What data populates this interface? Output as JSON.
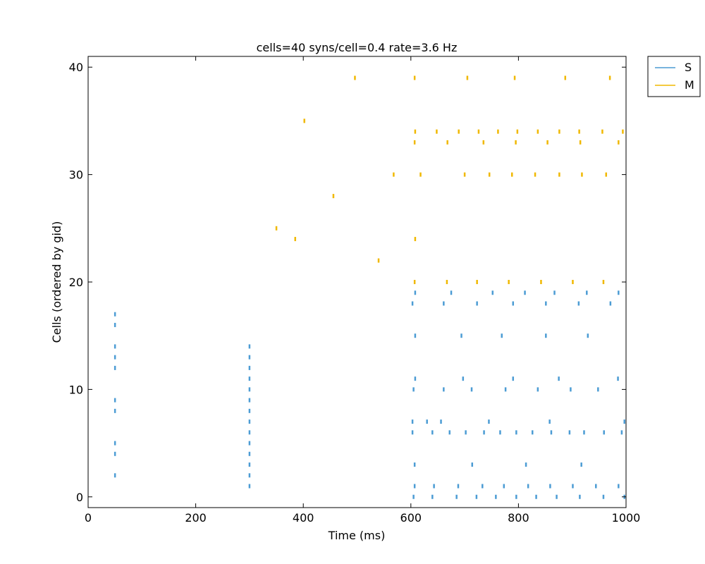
{
  "chart_data": {
    "type": "scatter",
    "title": "cells=40 syns/cell=0.4 rate=3.6 Hz",
    "xlabel": "Time (ms)",
    "ylabel": "Cells (ordered by gid)",
    "xlim": [
      0,
      1000
    ],
    "ylim": [
      -1,
      41
    ],
    "xticks": [
      0,
      200,
      400,
      600,
      800,
      1000
    ],
    "yticks": [
      0,
      10,
      20,
      30,
      40
    ],
    "grid": false,
    "legend_position": "outside top-right",
    "marker": "short vertical tick",
    "series": [
      {
        "name": "S",
        "color": "#4c9cd4",
        "points": [
          [
            50,
            2
          ],
          [
            50,
            4
          ],
          [
            50,
            5
          ],
          [
            50,
            8
          ],
          [
            50,
            9
          ],
          [
            50,
            12
          ],
          [
            50,
            13
          ],
          [
            50,
            14
          ],
          [
            50,
            16
          ],
          [
            50,
            17
          ],
          [
            300,
            1
          ],
          [
            300,
            2
          ],
          [
            300,
            3
          ],
          [
            300,
            4
          ],
          [
            300,
            5
          ],
          [
            300,
            6
          ],
          [
            300,
            7
          ],
          [
            300,
            8
          ],
          [
            300,
            9
          ],
          [
            300,
            10
          ],
          [
            300,
            11
          ],
          [
            300,
            12
          ],
          [
            300,
            13
          ],
          [
            300,
            14
          ],
          [
            605,
            0
          ],
          [
            640,
            0
          ],
          [
            685,
            0
          ],
          [
            722,
            0
          ],
          [
            758,
            0
          ],
          [
            796,
            0
          ],
          [
            833,
            0
          ],
          [
            871,
            0
          ],
          [
            914,
            0
          ],
          [
            958,
            0
          ],
          [
            997,
            0
          ],
          [
            607,
            1
          ],
          [
            643,
            1
          ],
          [
            688,
            1
          ],
          [
            733,
            1
          ],
          [
            773,
            1
          ],
          [
            818,
            1
          ],
          [
            859,
            1
          ],
          [
            901,
            1
          ],
          [
            944,
            1
          ],
          [
            986,
            1
          ],
          [
            607,
            3
          ],
          [
            714,
            3
          ],
          [
            814,
            3
          ],
          [
            917,
            3
          ],
          [
            603,
            6
          ],
          [
            640,
            6
          ],
          [
            672,
            6
          ],
          [
            702,
            6
          ],
          [
            736,
            6
          ],
          [
            766,
            6
          ],
          [
            796,
            6
          ],
          [
            826,
            6
          ],
          [
            861,
            6
          ],
          [
            895,
            6
          ],
          [
            922,
            6
          ],
          [
            959,
            6
          ],
          [
            992,
            6
          ],
          [
            603,
            7
          ],
          [
            630,
            7
          ],
          [
            656,
            7
          ],
          [
            745,
            7
          ],
          [
            858,
            7
          ],
          [
            997,
            7
          ],
          [
            605,
            10
          ],
          [
            661,
            10
          ],
          [
            713,
            10
          ],
          [
            776,
            10
          ],
          [
            836,
            10
          ],
          [
            897,
            10
          ],
          [
            948,
            10
          ],
          [
            608,
            11
          ],
          [
            697,
            11
          ],
          [
            790,
            11
          ],
          [
            875,
            11
          ],
          [
            985,
            11
          ],
          [
            608,
            15
          ],
          [
            694,
            15
          ],
          [
            769,
            15
          ],
          [
            851,
            15
          ],
          [
            929,
            15
          ],
          [
            603,
            18
          ],
          [
            661,
            18
          ],
          [
            723,
            18
          ],
          [
            790,
            18
          ],
          [
            851,
            18
          ],
          [
            912,
            18
          ],
          [
            971,
            18
          ],
          [
            608,
            19
          ],
          [
            675,
            19
          ],
          [
            752,
            19
          ],
          [
            812,
            19
          ],
          [
            867,
            19
          ],
          [
            927,
            19
          ],
          [
            986,
            19
          ]
        ]
      },
      {
        "name": "M",
        "color": "#f0b800",
        "points": [
          [
            350,
            25
          ],
          [
            385,
            24
          ],
          [
            402,
            35
          ],
          [
            456,
            28
          ],
          [
            496,
            39
          ],
          [
            540,
            22
          ],
          [
            568,
            30
          ],
          [
            607,
            20
          ],
          [
            667,
            20
          ],
          [
            723,
            20
          ],
          [
            782,
            20
          ],
          [
            842,
            20
          ],
          [
            901,
            20
          ],
          [
            958,
            20
          ],
          [
            608,
            24
          ],
          [
            618,
            30
          ],
          [
            700,
            30
          ],
          [
            746,
            30
          ],
          [
            788,
            30
          ],
          [
            831,
            30
          ],
          [
            876,
            30
          ],
          [
            918,
            30
          ],
          [
            963,
            30
          ],
          [
            607,
            33
          ],
          [
            668,
            33
          ],
          [
            735,
            33
          ],
          [
            795,
            33
          ],
          [
            854,
            33
          ],
          [
            915,
            33
          ],
          [
            986,
            33
          ],
          [
            608,
            34
          ],
          [
            648,
            34
          ],
          [
            689,
            34
          ],
          [
            726,
            34
          ],
          [
            762,
            34
          ],
          [
            798,
            34
          ],
          [
            836,
            34
          ],
          [
            876,
            34
          ],
          [
            913,
            34
          ],
          [
            956,
            34
          ],
          [
            994,
            34
          ],
          [
            607,
            39
          ],
          [
            705,
            39
          ],
          [
            793,
            39
          ],
          [
            887,
            39
          ],
          [
            970,
            39
          ]
        ]
      }
    ]
  }
}
